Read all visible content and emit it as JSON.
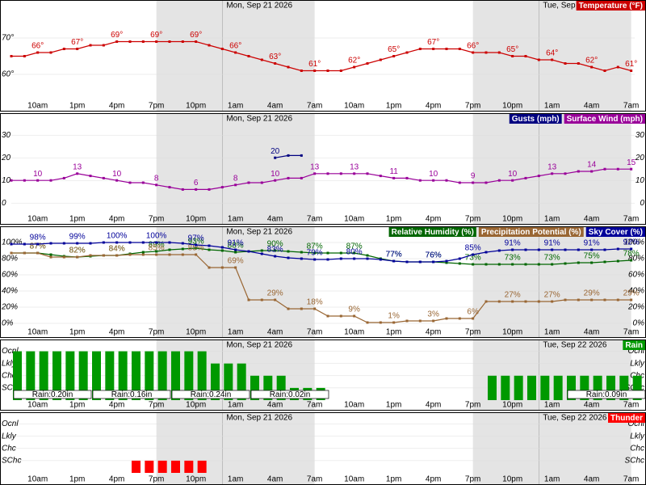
{
  "chart_data": [
    {
      "type": "line",
      "categories": [
        null,
        null,
        "10am",
        null,
        null,
        "1pm",
        null,
        null,
        "4pm",
        null,
        null,
        "7pm",
        null,
        null,
        "10pm",
        null,
        null,
        "1am",
        null,
        null,
        "4am",
        null,
        null,
        "7am",
        null,
        null,
        "10am",
        null,
        null,
        "1pm",
        null,
        null,
        "4pm",
        null,
        null,
        "7pm",
        null,
        null,
        "10pm",
        null,
        null,
        "1am",
        null,
        null,
        "4am",
        null,
        null,
        "7am"
      ],
      "dates": [
        "Mon, Sep 21 2026",
        "Tue, Sep 22 2026"
      ],
      "ylim": [
        52,
        80
      ],
      "yticks": [
        {
          "value": 60,
          "label": "60°"
        },
        {
          "value": 70,
          "label": "70°"
        }
      ],
      "series": [
        {
          "name": "Temperature (°F)",
          "color": "#cc0000",
          "values": [
            65,
            65,
            66,
            66,
            67,
            67,
            68,
            68,
            69,
            69,
            69,
            69,
            69,
            69,
            69,
            68,
            67,
            66,
            65,
            64,
            63,
            62,
            61,
            61,
            61,
            61,
            62,
            63,
            64,
            65,
            66,
            67,
            67,
            67,
            67,
            66,
            66,
            66,
            65,
            65,
            64,
            64,
            63,
            63,
            62,
            61,
            62,
            61
          ],
          "value_labels": [
            null,
            null,
            "66°",
            null,
            null,
            "67°",
            null,
            null,
            "69°",
            null,
            null,
            "69°",
            null,
            null,
            "69°",
            null,
            null,
            "66°",
            null,
            null,
            "63°",
            null,
            null,
            "61°",
            null,
            null,
            "62°",
            null,
            null,
            "65°",
            null,
            null,
            "67°",
            null,
            null,
            "66°",
            null,
            null,
            "65°",
            null,
            null,
            "64°",
            null,
            null,
            "62°",
            null,
            null,
            "61°"
          ]
        }
      ]
    },
    {
      "type": "line",
      "categories": [
        null,
        null,
        "10am",
        null,
        null,
        "1pm",
        null,
        null,
        "4pm",
        null,
        null,
        "7pm",
        null,
        null,
        "10pm",
        null,
        null,
        "1am",
        null,
        null,
        "4am",
        null,
        null,
        "7am",
        null,
        null,
        "10am",
        null,
        null,
        "1pm",
        null,
        null,
        "4pm",
        null,
        null,
        "7pm",
        null,
        null,
        "10pm",
        null,
        null,
        "1am",
        null,
        null,
        "4am",
        null,
        null,
        "7am"
      ],
      "dates": [
        "Mon, Sep 21 2026"
      ],
      "ylim": [
        -6,
        39
      ],
      "yticks": [
        0,
        10,
        20,
        30
      ],
      "series": [
        {
          "name": "Gusts (mph)",
          "color": "#000080",
          "values": [
            null,
            null,
            null,
            null,
            null,
            null,
            null,
            null,
            null,
            null,
            null,
            null,
            null,
            null,
            null,
            null,
            null,
            null,
            null,
            null,
            20,
            21,
            21,
            null,
            null,
            null,
            null,
            null,
            null,
            null,
            null,
            null,
            null,
            null,
            null,
            null,
            null,
            null,
            null,
            null,
            null,
            null,
            null,
            null,
            null,
            null,
            null,
            null
          ]
        },
        {
          "name": "Surface Wind (mph)",
          "color": "#990099",
          "values": [
            10,
            10,
            10,
            10,
            11,
            13,
            12,
            11,
            10,
            9,
            9,
            8,
            7,
            6,
            6,
            6,
            7,
            8,
            9,
            9,
            10,
            11,
            11,
            13,
            13,
            13,
            13,
            13,
            12,
            11,
            11,
            10,
            10,
            10,
            9,
            9,
            9,
            10,
            10,
            11,
            12,
            13,
            13,
            14,
            14,
            15,
            15,
            15
          ]
        }
      ]
    },
    {
      "type": "line",
      "categories": [
        null,
        null,
        "10am",
        null,
        null,
        "1pm",
        null,
        null,
        "4pm",
        null,
        null,
        "7pm",
        null,
        null,
        "10pm",
        null,
        null,
        "1am",
        null,
        null,
        "4am",
        null,
        null,
        "7am",
        null,
        null,
        "10am",
        null,
        null,
        "1pm",
        null,
        null,
        "4pm",
        null,
        null,
        "7pm",
        null,
        null,
        "10pm",
        null,
        null,
        "1am",
        null,
        null,
        "4am",
        null,
        null,
        "7am"
      ],
      "dates": [
        "Mon, Sep 21 2026"
      ],
      "ylim": [
        -8,
        118
      ],
      "yticks": [
        {
          "value": 0,
          "label": "0%"
        },
        {
          "value": 20,
          "label": "20%"
        },
        {
          "value": 40,
          "label": "40%"
        },
        {
          "value": 60,
          "label": "60%"
        },
        {
          "value": 80,
          "label": "80%"
        },
        {
          "value": 100,
          "label": "100%"
        }
      ],
      "series": [
        {
          "name": "Relative Humidity (%)",
          "color": "#006600",
          "values": [
            87,
            87,
            87,
            85,
            83,
            82,
            83,
            84,
            84,
            86,
            88,
            89,
            91,
            92,
            93,
            91,
            90,
            88,
            89,
            90,
            90,
            89,
            88,
            87,
            87,
            87,
            87,
            84,
            80,
            77,
            76,
            76,
            76,
            75,
            74,
            73,
            73,
            73,
            73,
            73,
            73,
            73,
            74,
            75,
            75,
            76,
            77,
            78
          ],
          "value_labels": [
            null,
            null,
            "87%",
            null,
            null,
            "82%",
            null,
            null,
            "84%",
            null,
            null,
            "89%",
            null,
            null,
            "93%",
            null,
            null,
            "88%",
            null,
            null,
            "90%",
            null,
            null,
            "87%",
            null,
            null,
            "87%",
            null,
            null,
            "77%",
            null,
            null,
            "76%",
            null,
            null,
            "73%",
            null,
            null,
            "73%",
            null,
            null,
            "73%",
            null,
            null,
            "75%",
            null,
            null,
            "78%"
          ]
        },
        {
          "name": "Precipitation Potential (%)",
          "color": "#996633",
          "values": [
            87,
            87,
            87,
            82,
            82,
            82,
            84,
            84,
            84,
            85,
            85,
            85,
            85,
            85,
            85,
            69,
            69,
            69,
            29,
            29,
            29,
            18,
            18,
            18,
            9,
            9,
            9,
            1,
            1,
            1,
            3,
            3,
            3,
            6,
            6,
            6,
            27,
            27,
            27,
            27,
            27,
            27,
            29,
            29,
            29,
            29,
            29,
            29
          ],
          "value_labels": [
            null,
            null,
            "87%",
            null,
            null,
            "82%",
            null,
            null,
            "84%",
            null,
            null,
            "85%",
            null,
            null,
            "85%",
            null,
            null,
            "69%",
            null,
            null,
            "29%",
            null,
            null,
            "18%",
            null,
            null,
            "9%",
            null,
            null,
            "1%",
            null,
            null,
            "3%",
            null,
            null,
            "6%",
            null,
            null,
            "27%",
            null,
            null,
            "27%",
            null,
            null,
            "29%",
            null,
            null,
            "29%"
          ]
        },
        {
          "name": "Sky Cover (%)",
          "color": "#000099",
          "values": [
            98,
            98,
            98,
            99,
            99,
            99,
            99,
            100,
            100,
            100,
            100,
            100,
            100,
            99,
            97,
            96,
            94,
            91,
            89,
            86,
            83,
            81,
            80,
            79,
            79,
            80,
            80,
            80,
            79,
            77,
            76,
            76,
            76,
            77,
            80,
            85,
            88,
            90,
            91,
            91,
            91,
            91,
            91,
            91,
            91,
            91,
            92,
            92
          ],
          "value_labels": [
            null,
            null,
            "98%",
            null,
            null,
            "99%",
            null,
            null,
            "100%",
            null,
            null,
            "100%",
            null,
            null,
            "97%",
            null,
            null,
            "91%",
            null,
            null,
            "83%",
            null,
            null,
            "79%",
            null,
            null,
            "80%",
            null,
            null,
            "77%",
            null,
            null,
            "76%",
            null,
            null,
            "85%",
            null,
            null,
            "91%",
            null,
            null,
            "91%",
            null,
            null,
            "91%",
            null,
            null,
            "92%"
          ]
        }
      ]
    },
    {
      "type": "bar",
      "categories": [
        null,
        null,
        "10am",
        null,
        null,
        "1pm",
        null,
        null,
        "4pm",
        null,
        null,
        "7pm",
        null,
        null,
        "10pm",
        null,
        null,
        "1am",
        null,
        null,
        "4am",
        null,
        null,
        "7am",
        null,
        null,
        "10am",
        null,
        null,
        "1pm",
        null,
        null,
        "4pm",
        null,
        null,
        "7pm",
        null,
        null,
        "10pm",
        null,
        null,
        "1am",
        null,
        null,
        "4am",
        null,
        null,
        "7am"
      ],
      "dates": [
        "Mon, Sep 21 2026",
        "Tue, Sep 22 2026"
      ],
      "ylim": [
        0,
        4.9
      ],
      "yticks": [
        {
          "value": 1,
          "label": "SChc"
        },
        {
          "value": 2,
          "label": "Chc"
        },
        {
          "value": 3,
          "label": "Lkly"
        },
        {
          "value": 4,
          "label": "Ocnl"
        }
      ],
      "totals": [
        "Rain:0.20in",
        "Rain:0.16in",
        "Rain:0.24in",
        "Rain:0.02in",
        "Rain:0.09in"
      ],
      "series": [
        {
          "name": "Rain",
          "color": "#009900",
          "values": [
            4,
            4,
            4,
            4,
            4,
            4,
            4,
            4,
            4,
            4,
            4,
            4,
            4,
            4,
            4,
            3,
            3,
            3,
            2,
            2,
            2,
            1,
            1,
            1,
            null,
            null,
            null,
            null,
            null,
            null,
            null,
            null,
            null,
            null,
            null,
            null,
            2,
            2,
            2,
            2,
            2,
            2,
            2,
            2,
            2,
            2,
            2,
            2
          ]
        }
      ]
    },
    {
      "type": "bar",
      "categories": [
        null,
        null,
        "10am",
        null,
        null,
        "1pm",
        null,
        null,
        "4pm",
        null,
        null,
        "7pm",
        null,
        null,
        "10pm",
        null,
        null,
        "1am",
        null,
        null,
        "4am",
        null,
        null,
        "7am",
        null,
        null,
        "10am",
        null,
        null,
        "1pm",
        null,
        null,
        "4pm",
        null,
        null,
        "7pm",
        null,
        null,
        "10pm",
        null,
        null,
        "1am",
        null,
        null,
        "4am",
        null,
        null,
        "7am"
      ],
      "dates": [
        "Mon, Sep 21 2026",
        "Tue, Sep 22 2026"
      ],
      "ylim": [
        0,
        4.9
      ],
      "yticks": [
        {
          "value": 1,
          "label": "SChc"
        },
        {
          "value": 2,
          "label": "Chc"
        },
        {
          "value": 3,
          "label": "Lkly"
        },
        {
          "value": 4,
          "label": "Ocnl"
        }
      ],
      "series": [
        {
          "name": "Thunder",
          "color": "#ff0000",
          "values": [
            null,
            null,
            null,
            null,
            null,
            null,
            null,
            null,
            null,
            1,
            1,
            1,
            1,
            1,
            1,
            null,
            null,
            null,
            null,
            null,
            null,
            null,
            null,
            null,
            null,
            null,
            null,
            null,
            null,
            null,
            null,
            null,
            null,
            null,
            null,
            null,
            null,
            null,
            null,
            null,
            null,
            null,
            null,
            null,
            null,
            null,
            null,
            null
          ]
        }
      ]
    }
  ]
}
